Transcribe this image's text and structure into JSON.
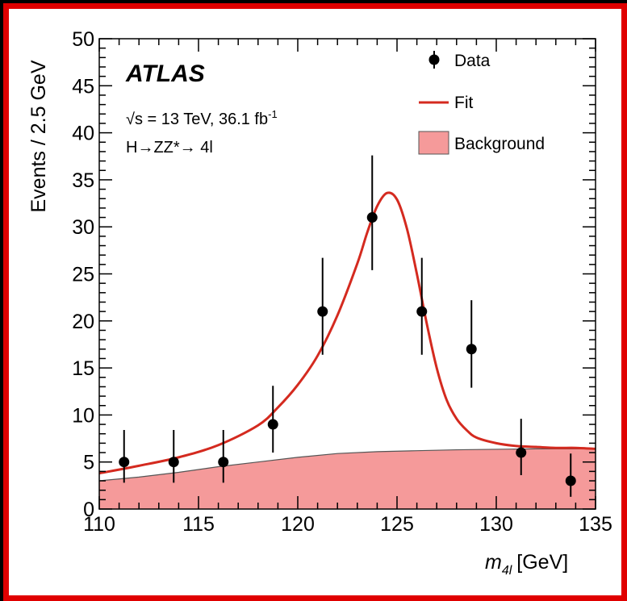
{
  "colors": {
    "frame": "#e00000",
    "outer_background": "#000000",
    "fit": "#d42a1f",
    "background_fill": "#f59a9a",
    "background_line": "#555555",
    "data": "#000000"
  },
  "chart_data": {
    "type": "scatter",
    "title": "",
    "experiment": "ATLAS",
    "energy_label_prefix": "√s = 13 TeV, 36.1 fb",
    "energy_label_sup": "-1",
    "process_label": "H→ZZ*→ 4l",
    "xlabel_main": "m",
    "xlabel_sub": "4l",
    "xlabel_unit": "[GeV]",
    "ylabel": "Events / 2.5 GeV",
    "xlim": [
      110,
      135
    ],
    "ylim": [
      0,
      50
    ],
    "xticks": [
      110,
      115,
      120,
      125,
      130,
      135
    ],
    "yticks": [
      0,
      5,
      10,
      15,
      20,
      25,
      30,
      35,
      40,
      45,
      50
    ],
    "legend": {
      "position": "top-right",
      "data": "Data",
      "fit": "Fit",
      "background": "Background"
    },
    "data_points": {
      "x": [
        111.25,
        113.75,
        116.25,
        118.75,
        121.25,
        123.75,
        126.25,
        128.75,
        131.25,
        133.75
      ],
      "y": [
        5,
        5,
        5,
        9,
        21,
        31,
        21,
        17,
        6,
        3
      ],
      "err_low": [
        2.2,
        2.2,
        2.2,
        3.0,
        4.6,
        5.6,
        4.6,
        4.1,
        2.4,
        1.7
      ],
      "err_high": [
        3.4,
        3.4,
        3.4,
        4.1,
        5.7,
        6.6,
        5.7,
        5.2,
        3.6,
        2.9
      ]
    },
    "fit": {
      "x": [
        110,
        112,
        114,
        116,
        118,
        119,
        120,
        121,
        122,
        123,
        123.5,
        124,
        124.5,
        125,
        125.5,
        126,
        126.5,
        127,
        127.5,
        128,
        128.5,
        129,
        130,
        131,
        132,
        133,
        134,
        135
      ],
      "y": [
        3.8,
        4.6,
        5.5,
        6.8,
        8.9,
        10.8,
        13.2,
        16.3,
        20.6,
        26.1,
        29.4,
        32.2,
        33.6,
        32.9,
        29.8,
        25.0,
        19.7,
        15.0,
        11.6,
        9.6,
        8.4,
        7.6,
        7.0,
        6.7,
        6.6,
        6.5,
        6.5,
        6.4
      ]
    },
    "background": {
      "x": [
        110,
        112,
        114,
        116,
        118,
        120,
        122,
        124,
        126,
        128,
        130,
        132,
        134,
        135
      ],
      "y": [
        3.0,
        3.4,
        3.9,
        4.5,
        5.0,
        5.5,
        5.9,
        6.1,
        6.2,
        6.3,
        6.35,
        6.4,
        6.4,
        6.4
      ]
    }
  }
}
